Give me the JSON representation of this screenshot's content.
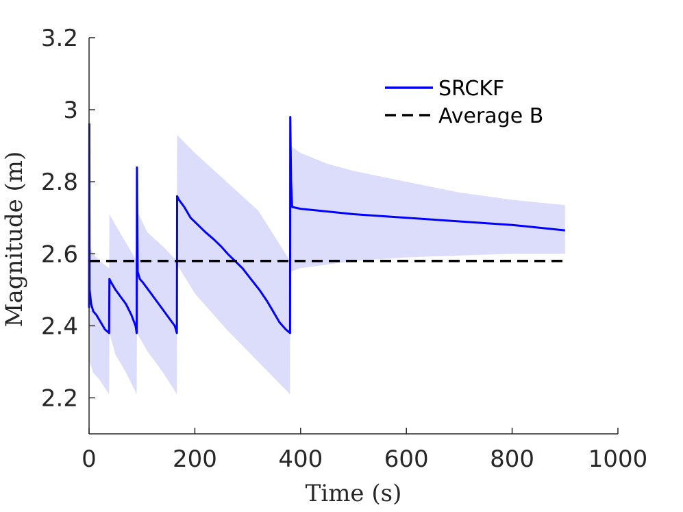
{
  "chart_data": {
    "type": "line",
    "title": "",
    "xlabel": "Time (s)",
    "ylabel": "Magnitude (m)",
    "xlim": [
      0,
      1000
    ],
    "ylim": [
      2.1,
      3.2
    ],
    "xticks": [
      0,
      200,
      400,
      600,
      800,
      1000
    ],
    "xtick_labels": [
      "0",
      "200",
      "400",
      "600",
      "800",
      "1000"
    ],
    "yticks": [
      2.2,
      2.4,
      2.6,
      2.8,
      3.0,
      3.2
    ],
    "ytick_labels": [
      "2.2",
      "2.4",
      "2.6",
      "2.8",
      "3",
      "3.2"
    ],
    "grid": false,
    "legend_position": "top-right",
    "series": [
      {
        "name": "SRCKF",
        "style": "solid",
        "color": "#0000ff",
        "x": [
          0,
          0.5,
          1,
          4,
          8,
          14,
          22,
          30,
          38,
          38.5,
          42,
          50,
          60,
          70,
          80,
          88,
          90,
          90.5,
          92,
          96,
          102,
          112,
          122,
          132,
          142,
          152,
          162,
          166,
          166.5,
          170,
          180,
          192,
          206,
          220,
          236,
          250,
          262,
          276,
          290,
          306,
          322,
          336,
          348,
          360,
          372,
          380,
          380.5,
          382,
          384,
          400,
          500,
          600,
          700,
          800,
          900
        ],
        "values": [
          2.45,
          2.96,
          2.5,
          2.46,
          2.44,
          2.43,
          2.41,
          2.39,
          2.38,
          2.53,
          2.52,
          2.5,
          2.48,
          2.46,
          2.43,
          2.4,
          2.38,
          2.84,
          2.55,
          2.53,
          2.52,
          2.5,
          2.48,
          2.46,
          2.44,
          2.42,
          2.4,
          2.38,
          2.76,
          2.75,
          2.73,
          2.7,
          2.68,
          2.66,
          2.64,
          2.62,
          2.6,
          2.58,
          2.56,
          2.53,
          2.5,
          2.47,
          2.44,
          2.41,
          2.39,
          2.38,
          2.98,
          2.8,
          2.73,
          2.725,
          2.71,
          2.7,
          2.69,
          2.68,
          2.665
        ]
      },
      {
        "name": "Average B",
        "style": "dashed",
        "color": "#000000",
        "x": [
          0,
          900
        ],
        "values": [
          2.58,
          2.58
        ]
      }
    ],
    "uncertainty_band": {
      "series": "SRCKF",
      "color": "#dcdcfb",
      "x": [
        0,
        1,
        8,
        20,
        38,
        38.5,
        50,
        70,
        90,
        90.5,
        110,
        140,
        166,
        166.5,
        200,
        260,
        320,
        380,
        380.5,
        400,
        450,
        500,
        600,
        700,
        800,
        900
      ],
      "upper": [
        2.62,
        2.62,
        2.6,
        2.58,
        2.56,
        2.71,
        2.68,
        2.63,
        2.58,
        2.72,
        2.66,
        2.62,
        2.58,
        2.93,
        2.88,
        2.8,
        2.72,
        2.58,
        2.9,
        2.88,
        2.85,
        2.83,
        2.8,
        2.77,
        2.75,
        2.735
      ],
      "lower": [
        2.3,
        2.3,
        2.27,
        2.25,
        2.21,
        2.38,
        2.32,
        2.27,
        2.21,
        2.38,
        2.33,
        2.27,
        2.21,
        2.57,
        2.49,
        2.39,
        2.3,
        2.21,
        2.55,
        2.56,
        2.57,
        2.58,
        2.59,
        2.595,
        2.6,
        2.6
      ]
    }
  }
}
